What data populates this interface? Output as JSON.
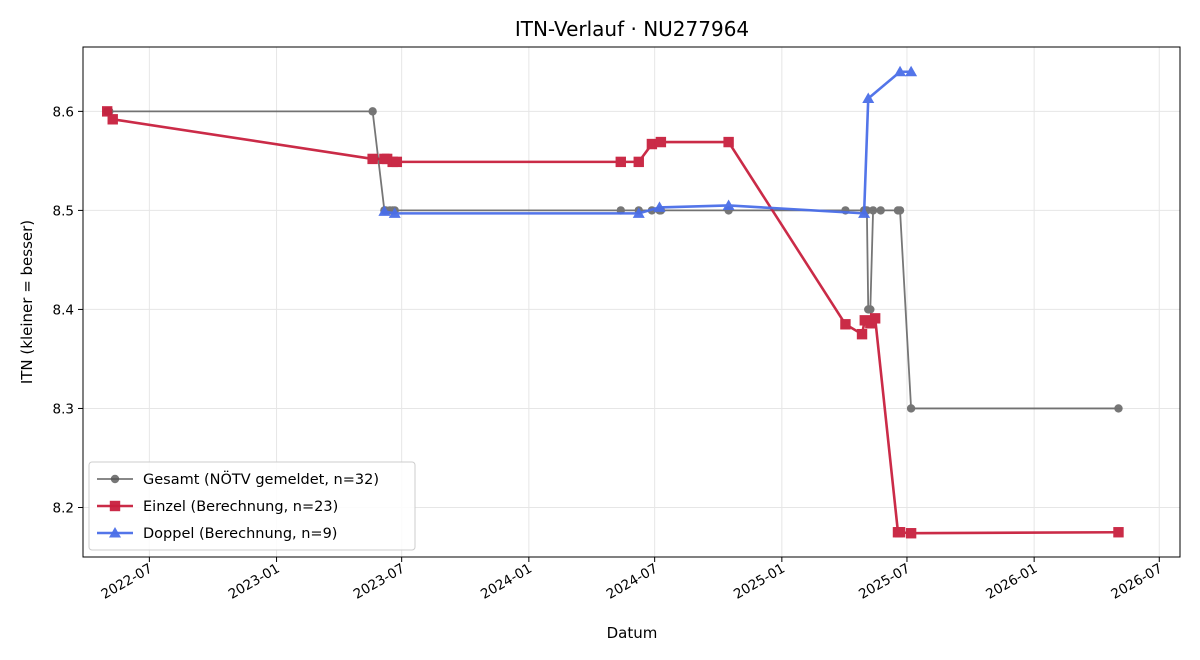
{
  "chart_data": {
    "type": "line",
    "title": "ITN-Verlauf · NU277964",
    "xlabel": "Datum",
    "ylabel": "ITN  (kleiner = besser)",
    "x_type": "date",
    "xlim": [
      "2022-03-27",
      "2026-07-31"
    ],
    "ylim": [
      8.15,
      8.665
    ],
    "x_ticks": [
      "2022-07-01",
      "2023-01-01",
      "2023-07-01",
      "2024-01-01",
      "2024-07-01",
      "2025-01-01",
      "2025-07-01",
      "2026-01-01",
      "2026-07-01"
    ],
    "x_tick_labels": [
      "2022-07",
      "2023-01",
      "2023-07",
      "2024-01",
      "2024-07",
      "2025-01",
      "2025-07",
      "2026-01",
      "2026-07"
    ],
    "y_ticks": [
      8.2,
      8.3,
      8.4,
      8.5,
      8.6
    ],
    "y_tick_labels": [
      "8.2",
      "8.3",
      "8.4",
      "8.5",
      "8.6"
    ],
    "grid": true,
    "legend_position": "lower-left",
    "series": [
      {
        "name": "Gesamt (NÖTV gemeldet, n=32)",
        "color": "#555555",
        "marker": "circle",
        "points": [
          [
            "2022-05-01",
            8.6
          ],
          [
            "2022-05-04",
            8.6
          ],
          [
            "2023-05-20",
            8.6
          ],
          [
            "2023-06-06",
            8.5
          ],
          [
            "2023-06-08",
            8.5
          ],
          [
            "2023-06-14",
            8.5
          ],
          [
            "2023-06-18",
            8.5
          ],
          [
            "2023-06-21",
            8.5
          ],
          [
            "2024-05-13",
            8.5
          ],
          [
            "2024-06-08",
            8.5
          ],
          [
            "2024-06-27",
            8.5
          ],
          [
            "2024-07-08",
            8.5
          ],
          [
            "2024-07-10",
            8.5
          ],
          [
            "2024-10-16",
            8.5
          ],
          [
            "2025-04-03",
            8.5
          ],
          [
            "2025-04-30",
            8.5
          ],
          [
            "2025-05-02",
            8.5
          ],
          [
            "2025-05-04",
            8.5
          ],
          [
            "2025-05-06",
            8.4
          ],
          [
            "2025-05-09",
            8.4
          ],
          [
            "2025-05-13",
            8.5
          ],
          [
            "2025-05-24",
            8.5
          ],
          [
            "2025-06-18",
            8.5
          ],
          [
            "2025-06-21",
            8.5
          ],
          [
            "2025-07-07",
            8.3
          ],
          [
            "2026-05-03",
            8.3
          ]
        ]
      },
      {
        "name": "Einzel (Berechnung, n=23)",
        "color": "#c8203e",
        "marker": "square",
        "points": [
          [
            "2022-05-01",
            8.6
          ],
          [
            "2022-05-09",
            8.592
          ],
          [
            "2023-05-20",
            8.552
          ],
          [
            "2023-06-06",
            8.552
          ],
          [
            "2023-06-10",
            8.552
          ],
          [
            "2023-06-18",
            8.549
          ],
          [
            "2023-06-24",
            8.549
          ],
          [
            "2024-05-13",
            8.549
          ],
          [
            "2024-06-08",
            8.549
          ],
          [
            "2024-06-27",
            8.567
          ],
          [
            "2024-07-10",
            8.569
          ],
          [
            "2024-10-16",
            8.569
          ],
          [
            "2025-04-03",
            8.385
          ],
          [
            "2025-04-27",
            8.375
          ],
          [
            "2025-05-01",
            8.389
          ],
          [
            "2025-05-09",
            8.386
          ],
          [
            "2025-05-16",
            8.391
          ],
          [
            "2025-06-18",
            8.175
          ],
          [
            "2025-06-21",
            8.175
          ],
          [
            "2025-07-07",
            8.174
          ],
          [
            "2026-05-03",
            8.175
          ]
        ]
      },
      {
        "name": "Doppel (Berechnung, n=9)",
        "color": "#4a6ee8",
        "marker": "triangle",
        "points": [
          [
            "2023-06-06",
            8.499
          ],
          [
            "2023-06-21",
            8.497
          ],
          [
            "2024-06-08",
            8.497
          ],
          [
            "2024-07-08",
            8.503
          ],
          [
            "2024-10-16",
            8.505
          ],
          [
            "2025-04-30",
            8.497
          ],
          [
            "2025-05-06",
            8.613
          ],
          [
            "2025-06-21",
            8.64
          ],
          [
            "2025-07-07",
            8.64
          ]
        ]
      }
    ]
  }
}
